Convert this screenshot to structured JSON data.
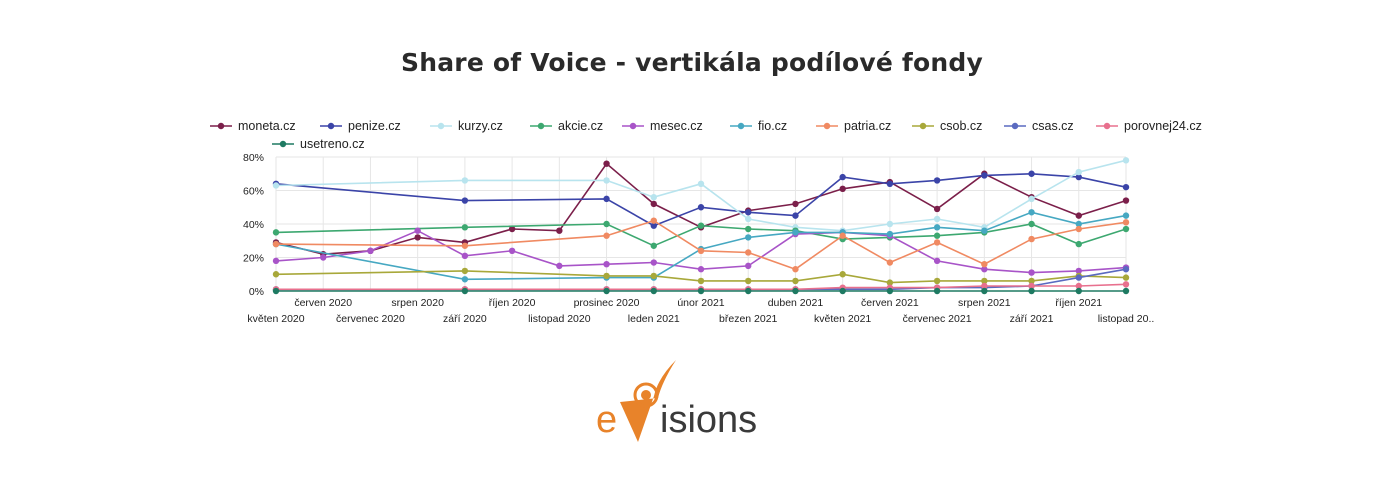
{
  "title": "Share of Voice - vertikála podílové fondy",
  "logo": {
    "text": "eVisions",
    "colors": {
      "orange": "#E8832A",
      "dark": "#3a3a3a"
    }
  },
  "chart_data": {
    "type": "line",
    "title": "Share of Voice - vertikála podílové fondy",
    "x": [
      "květen 2020",
      "červen 2020",
      "červenec 2020",
      "srpen 2020",
      "září 2020",
      "říjen 2020",
      "listopad 2020",
      "prosinec 2020",
      "leden 2021",
      "únor 2021",
      "březen 2021",
      "duben 2021",
      "květen 2021",
      "červen 2021",
      "červenec 2021",
      "srpen 2021",
      "září 2021",
      "říjen 2021",
      "listopad 20.."
    ],
    "ylim": [
      0,
      80
    ],
    "yticks": [
      "0%",
      "20%",
      "40%",
      "60%",
      "80%"
    ],
    "grid": true,
    "legend_position": "top",
    "series": [
      {
        "name": "moneta.cz",
        "color": "#7b1f4a",
        "points": [
          [
            0,
            29
          ],
          [
            1,
            22
          ],
          [
            2,
            24
          ],
          [
            3,
            32
          ],
          [
            4,
            29
          ],
          [
            5,
            37
          ],
          [
            6,
            36
          ],
          [
            7,
            76
          ],
          [
            8,
            52
          ],
          [
            9,
            38
          ],
          [
            10,
            48
          ],
          [
            11,
            52
          ],
          [
            12,
            61
          ],
          [
            13,
            65
          ],
          [
            14,
            49
          ],
          [
            15,
            70
          ],
          [
            16,
            56
          ],
          [
            17,
            45
          ],
          [
            18,
            54
          ]
        ]
      },
      {
        "name": "penize.cz",
        "color": "#3b44a8",
        "points": [
          [
            0,
            64
          ],
          [
            4,
            54
          ],
          [
            7,
            55
          ],
          [
            8,
            39
          ],
          [
            9,
            50
          ],
          [
            10,
            47
          ],
          [
            11,
            45
          ],
          [
            12,
            68
          ],
          [
            13,
            64
          ],
          [
            14,
            66
          ],
          [
            15,
            69
          ],
          [
            16,
            70
          ],
          [
            17,
            68
          ],
          [
            18,
            62
          ]
        ]
      },
      {
        "name": "kurzy.cz",
        "color": "#b8e4ee",
        "points": [
          [
            0,
            63
          ],
          [
            4,
            66
          ],
          [
            7,
            66
          ],
          [
            8,
            56
          ],
          [
            9,
            64
          ],
          [
            10,
            43
          ],
          [
            11,
            38
          ],
          [
            12,
            36
          ],
          [
            13,
            40
          ],
          [
            14,
            43
          ],
          [
            15,
            38
          ],
          [
            16,
            55
          ],
          [
            17,
            71
          ],
          [
            18,
            78
          ]
        ]
      },
      {
        "name": "akcie.cz",
        "color": "#3da870",
        "points": [
          [
            0,
            35
          ],
          [
            4,
            38
          ],
          [
            7,
            40
          ],
          [
            8,
            27
          ],
          [
            9,
            39
          ],
          [
            10,
            37
          ],
          [
            11,
            36
          ],
          [
            12,
            31
          ],
          [
            13,
            32
          ],
          [
            14,
            33
          ],
          [
            15,
            35
          ],
          [
            16,
            40
          ],
          [
            17,
            28
          ],
          [
            18,
            37
          ]
        ]
      },
      {
        "name": "mesec.cz",
        "color": "#a854c8",
        "points": [
          [
            0,
            18
          ],
          [
            1,
            20
          ],
          [
            2,
            24
          ],
          [
            3,
            36
          ],
          [
            4,
            21
          ],
          [
            5,
            24
          ],
          [
            6,
            15
          ],
          [
            7,
            16
          ],
          [
            8,
            17
          ],
          [
            9,
            13
          ],
          [
            10,
            15
          ],
          [
            11,
            34
          ],
          [
            12,
            35
          ],
          [
            13,
            33
          ],
          [
            14,
            18
          ],
          [
            15,
            13
          ],
          [
            16,
            11
          ],
          [
            17,
            12
          ],
          [
            18,
            14
          ]
        ]
      },
      {
        "name": "fio.cz",
        "color": "#46a8c2",
        "points": [
          [
            0,
            28
          ],
          [
            4,
            7
          ],
          [
            7,
            8
          ],
          [
            8,
            8
          ],
          [
            9,
            25
          ],
          [
            10,
            32
          ],
          [
            11,
            35
          ],
          [
            12,
            35
          ],
          [
            13,
            34
          ],
          [
            14,
            38
          ],
          [
            15,
            36
          ],
          [
            16,
            47
          ],
          [
            17,
            40
          ],
          [
            18,
            45
          ]
        ]
      },
      {
        "name": "patria.cz",
        "color": "#f08a62",
        "points": [
          [
            0,
            28
          ],
          [
            4,
            27
          ],
          [
            7,
            33
          ],
          [
            8,
            42
          ],
          [
            9,
            24
          ],
          [
            10,
            23
          ],
          [
            11,
            13
          ],
          [
            12,
            33
          ],
          [
            13,
            17
          ],
          [
            14,
            29
          ],
          [
            15,
            16
          ],
          [
            16,
            31
          ],
          [
            17,
            37
          ],
          [
            18,
            41
          ]
        ]
      },
      {
        "name": "csob.cz",
        "color": "#a8a83a",
        "points": [
          [
            0,
            10
          ],
          [
            4,
            12
          ],
          [
            7,
            9
          ],
          [
            8,
            9
          ],
          [
            9,
            6
          ],
          [
            10,
            6
          ],
          [
            11,
            6
          ],
          [
            12,
            10
          ],
          [
            13,
            5
          ],
          [
            14,
            6
          ],
          [
            15,
            6
          ],
          [
            16,
            6
          ],
          [
            17,
            9
          ],
          [
            18,
            8
          ]
        ]
      },
      {
        "name": "csas.cz",
        "color": "#5a6ac0",
        "points": [
          [
            0,
            1
          ],
          [
            4,
            1
          ],
          [
            7,
            1
          ],
          [
            8,
            1
          ],
          [
            9,
            1
          ],
          [
            10,
            1
          ],
          [
            11,
            1
          ],
          [
            12,
            1
          ],
          [
            13,
            1
          ],
          [
            14,
            2
          ],
          [
            15,
            2
          ],
          [
            16,
            3
          ],
          [
            17,
            8
          ],
          [
            18,
            13
          ]
        ]
      },
      {
        "name": "porovnej24.cz",
        "color": "#e8708e",
        "points": [
          [
            0,
            1
          ],
          [
            4,
            1
          ],
          [
            7,
            1
          ],
          [
            8,
            1
          ],
          [
            9,
            1
          ],
          [
            10,
            1
          ],
          [
            11,
            1
          ],
          [
            12,
            2
          ],
          [
            13,
            2
          ],
          [
            14,
            2
          ],
          [
            15,
            3
          ],
          [
            16,
            3
          ],
          [
            17,
            3
          ],
          [
            18,
            4
          ]
        ]
      },
      {
        "name": "usetreno.cz",
        "color": "#1e7a62",
        "points": [
          [
            0,
            0
          ],
          [
            4,
            0
          ],
          [
            7,
            0
          ],
          [
            8,
            0
          ],
          [
            9,
            0
          ],
          [
            10,
            0
          ],
          [
            11,
            0
          ],
          [
            12,
            0
          ],
          [
            13,
            0
          ],
          [
            14,
            0
          ],
          [
            15,
            0
          ],
          [
            16,
            0
          ],
          [
            17,
            0
          ],
          [
            18,
            0
          ]
        ]
      }
    ]
  }
}
